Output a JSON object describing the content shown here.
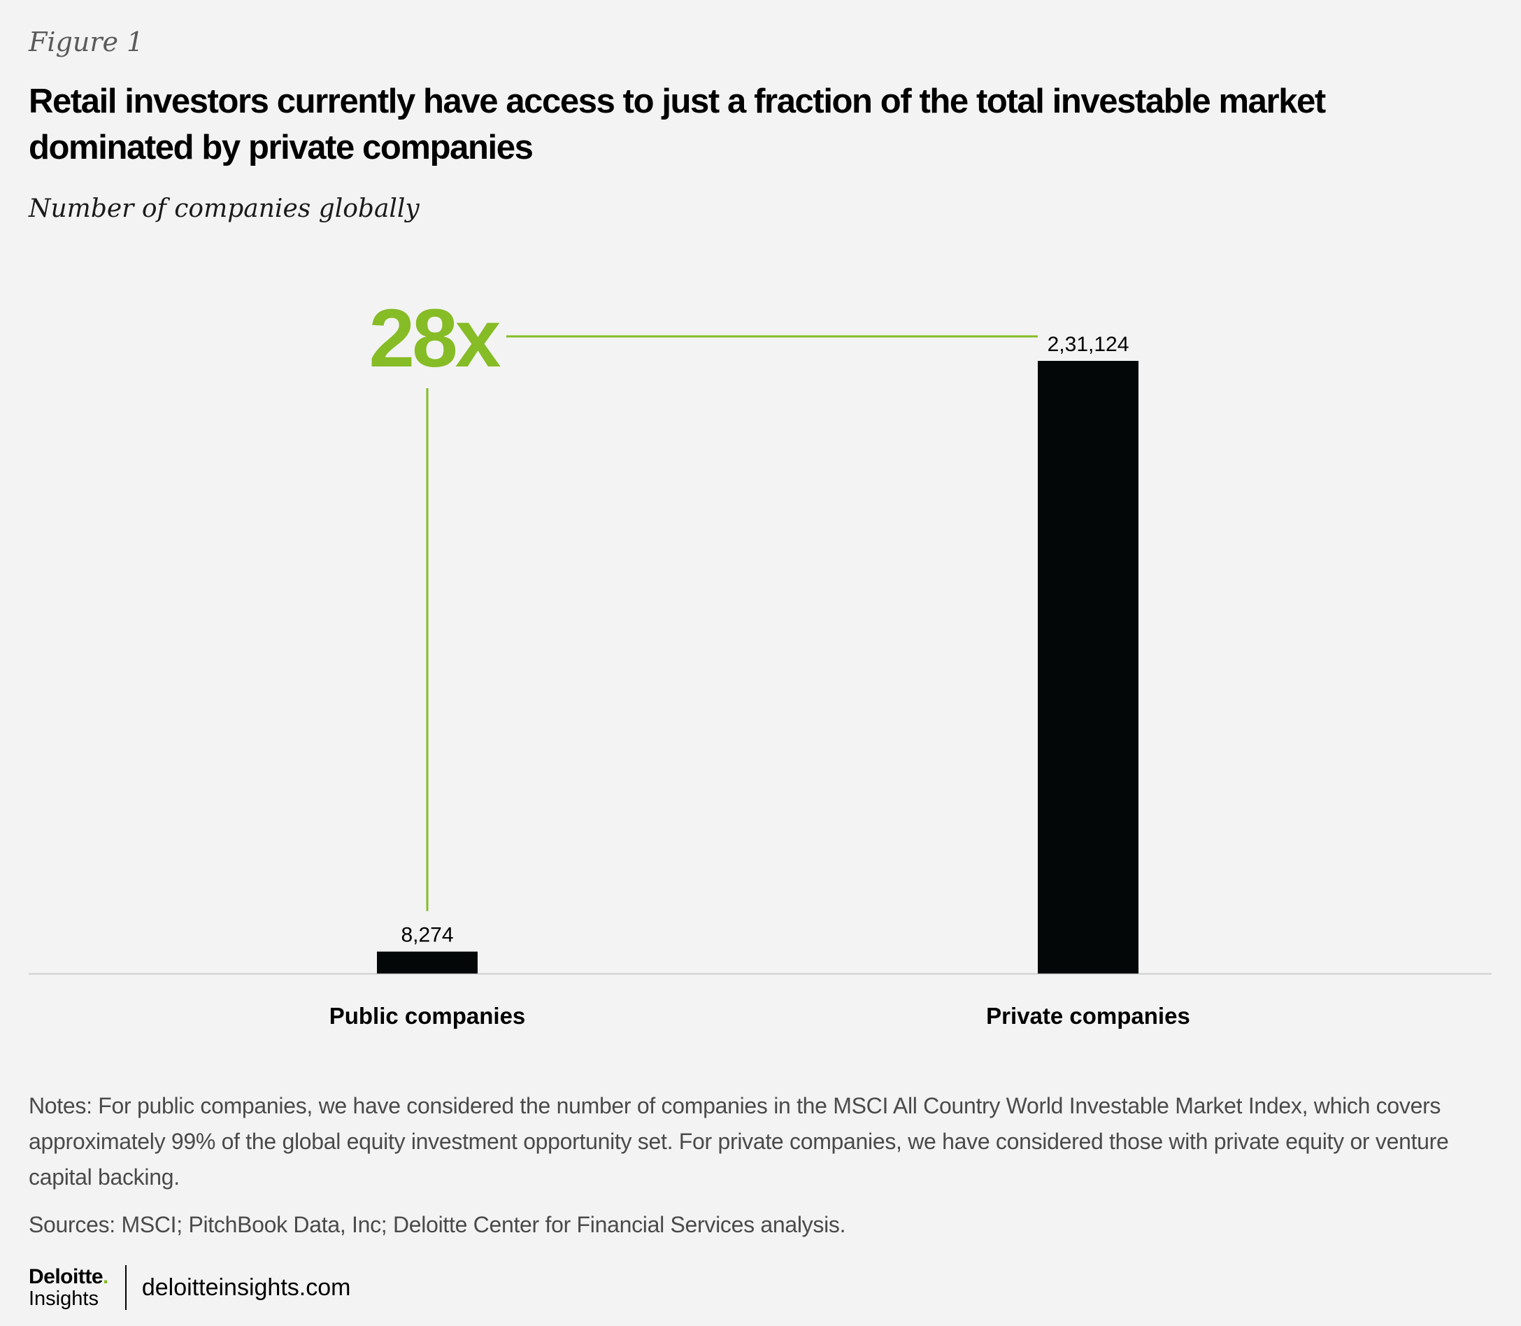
{
  "header": {
    "figure_label": "Figure 1",
    "title": "Retail investors currently have access to just a fraction of the total investable market dominated by private companies",
    "subtitle": "Number of companies globally"
  },
  "chart_data": {
    "type": "bar",
    "categories": [
      "Public companies",
      "Private companies"
    ],
    "values": [
      8274,
      231124
    ],
    "value_labels": [
      "8,274",
      "2,31,124"
    ],
    "title": "Retail investors currently have access to just a fraction of the total investable market dominated by private companies",
    "subtitle": "Number of companies globally",
    "ylim": [
      0,
      231124
    ],
    "grid": false,
    "legend": "none",
    "annotation": {
      "text": "28x",
      "color": "#86bc25"
    },
    "colors": {
      "bar": "#040708",
      "annotation": "#86bc25",
      "baseline": "#cccccc"
    }
  },
  "notes": "Notes: For public companies, we have considered the number of companies in the MSCI All Country World Investable Market Index, which covers approximately 99% of the global equity investment opportunity set. For private companies, we have considered those with private equity or venture capital backing.",
  "sources": "Sources: MSCI; PitchBook Data, Inc; Deloitte Center for Financial Services analysis.",
  "footer": {
    "logo_main": "Deloitte",
    "logo_dot": ".",
    "logo_sub": "Insights",
    "url": "deloitteinsights.com"
  }
}
